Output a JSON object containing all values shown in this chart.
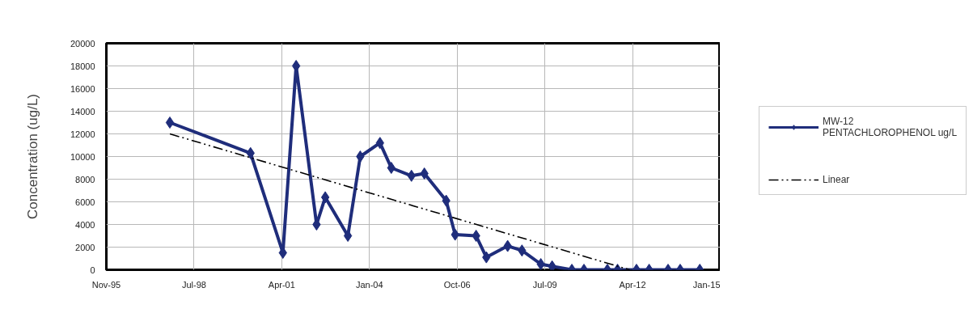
{
  "chart_data": {
    "type": "line",
    "ylabel": "Concentration (ug/L)",
    "x": [
      "1997-10-26",
      "2000-05-03",
      "2001-05-07",
      "2001-10-05",
      "2002-05-26",
      "2002-09-02",
      "2003-05-18",
      "2003-10-06",
      "2004-05-18",
      "2004-09-24",
      "2005-05-12",
      "2005-10-06",
      "2006-06-12",
      "2006-09-22",
      "2007-05-19",
      "2007-09-13",
      "2008-05-13",
      "2008-10-23",
      "2009-05-26",
      "2009-10-02",
      "2010-05-15",
      "2010-09-30",
      "2011-06-24",
      "2011-10-18",
      "2012-05-21",
      "2012-10-12",
      "2013-05-16",
      "2013-10-01",
      "2014-05-13"
    ],
    "series": [
      {
        "name": "MW-12 PENTACHLOROPHENOL ug/L",
        "color": "#1f2d7b",
        "marker": "diamond",
        "line_style": "solid",
        "values": [
          13000,
          10300,
          1500,
          18000,
          4000,
          6400,
          3000,
          10000,
          11200,
          9000,
          8300,
          8500,
          6100,
          3100,
          3000,
          1100,
          2100,
          1700,
          500,
          300,
          0,
          0,
          0,
          0,
          0,
          0,
          0,
          0,
          0
        ]
      },
      {
        "name": "Linear",
        "type": "line",
        "color": "#000000",
        "marker": "none",
        "line_style": "dashdot",
        "x": [
          "1997-10-26",
          "2012-03-05"
        ],
        "values": [
          12000,
          0
        ]
      }
    ],
    "xlim": [
      "1995-11-02",
      "2015-01-01"
    ],
    "xticks": [
      {
        "value": "1995-11-02",
        "label": "Nov-95"
      },
      {
        "value": "1998-07-29",
        "label": "Jul-98"
      },
      {
        "value": "2001-04-24",
        "label": "Apr-01"
      },
      {
        "value": "2004-01-19",
        "label": "Jan-04"
      },
      {
        "value": "2006-10-15",
        "label": "Oct-06"
      },
      {
        "value": "2009-07-11",
        "label": "Jul-09"
      },
      {
        "value": "2012-04-06",
        "label": "Apr-12"
      },
      {
        "value": "2015-01-01",
        "label": "Jan-15"
      }
    ],
    "ylim": [
      0,
      20000
    ],
    "yticks": [
      0,
      2000,
      4000,
      6000,
      8000,
      10000,
      12000,
      14000,
      16000,
      18000,
      20000
    ],
    "grid": true,
    "legend": "right"
  }
}
